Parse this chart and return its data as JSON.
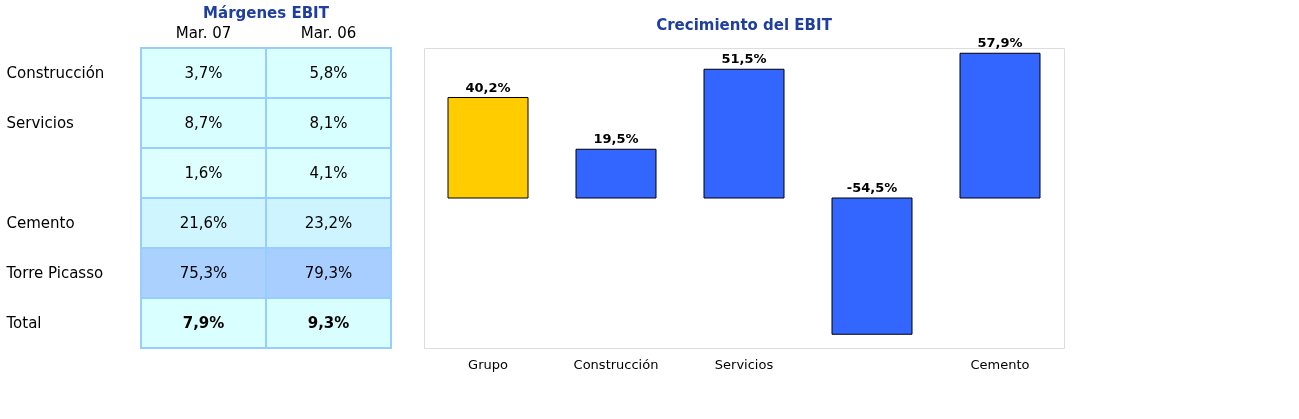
{
  "chart_data": [
    {
      "type": "heatmap",
      "title": "Márgenes EBIT",
      "categories": [
        "Mar. 07",
        "Mar. 06"
      ],
      "y_categories": [
        "Construcción",
        "Servicios",
        null,
        "Cemento",
        "Torre Picasso",
        "Total"
      ],
      "cells": [
        [
          3.7,
          5.8
        ],
        [
          8.7,
          8.1
        ],
        [
          1.6,
          4.1
        ],
        [
          21.6,
          23.2
        ],
        [
          75.3,
          79.3
        ],
        [
          7.9,
          9.3
        ]
      ],
      "cell_labels": [
        [
          "3,7%",
          "5,8%"
        ],
        [
          "8,7%",
          "8,1%"
        ],
        [
          "1,6%",
          "4,1%"
        ],
        [
          "21,6%",
          "23,2%"
        ],
        [
          "75,3%",
          "79,3%"
        ],
        [
          "7,9%",
          "9,3%"
        ]
      ]
    },
    {
      "type": "bar",
      "title": "Crecimiento del EBIT",
      "categories": [
        "Grupo",
        "Construcción",
        "Servicios",
        null,
        "Cemento"
      ],
      "values": [
        40.2,
        19.5,
        51.5,
        -54.5,
        57.9
      ],
      "colors": [
        "#ffcc00",
        "#3366ff",
        "#3366ff",
        "#3366ff",
        "#3366ff"
      ],
      "value_labels": [
        "40,2%",
        "19,5%",
        "51,5%",
        "-54,5%",
        "57,9%"
      ]
    }
  ]
}
